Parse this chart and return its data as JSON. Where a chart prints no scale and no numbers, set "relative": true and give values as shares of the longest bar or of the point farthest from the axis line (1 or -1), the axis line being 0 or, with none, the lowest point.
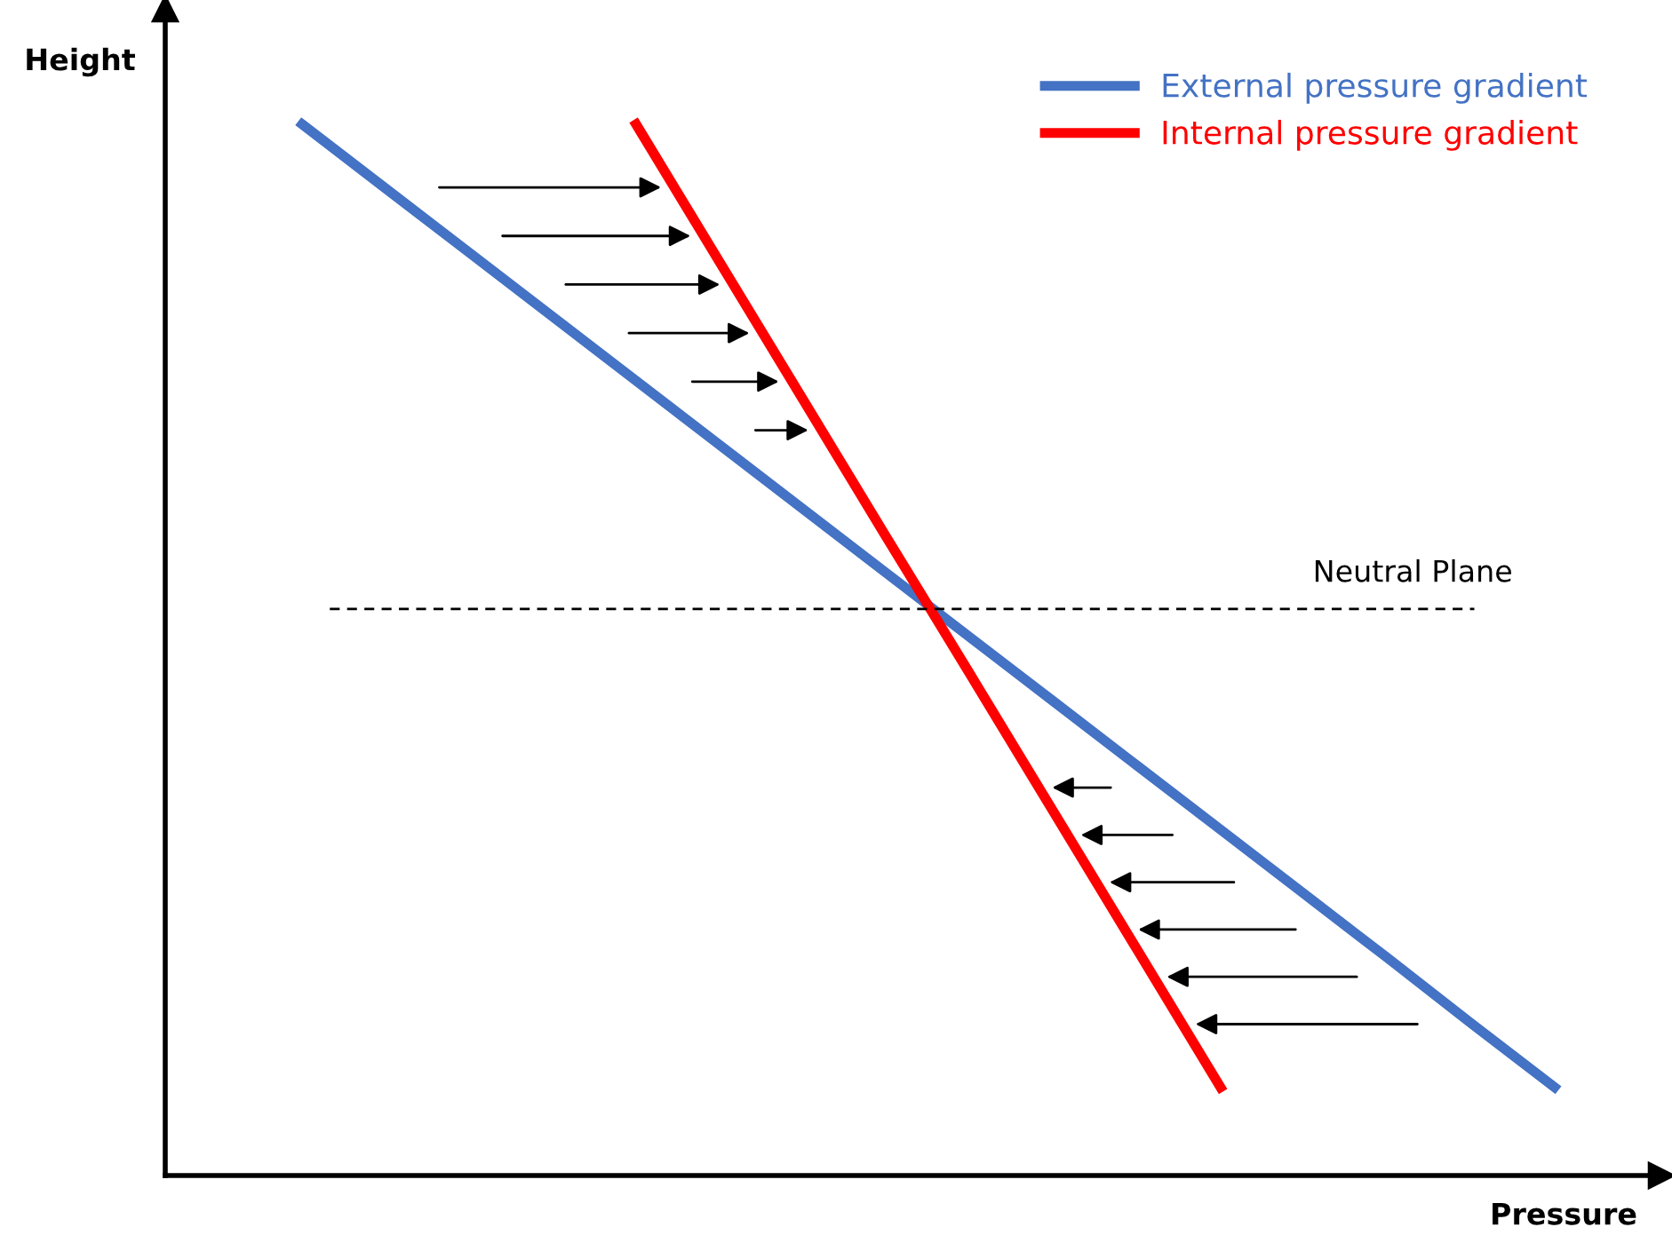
{
  "chart_data": {
    "type": "line",
    "relative": true,
    "xlabel": "Pressure",
    "ylabel": "Height",
    "legend": "top right",
    "categories": [
      null,
      null,
      null,
      null,
      null,
      null,
      null,
      null,
      null,
      null,
      null,
      null,
      null,
      null,
      null,
      null
    ],
    "series": [
      {
        "name": "External pressure gradient",
        "color": "#4472c4",
        "values": [
          1.0,
          0.939,
          0.878,
          0.817,
          0.756,
          0.695,
          0.634,
          0.573,
          0.512,
          0.451,
          0.39,
          0.329,
          0.268,
          0.207,
          0.145,
          0.084
        ]
      },
      {
        "name": "Internal pressure gradient",
        "color": "#ff0000",
        "values": [
          null,
          null,
          null,
          null,
          1.0,
          0.869,
          0.738,
          0.607,
          0.477,
          0.346,
          0.215,
          0.084,
          null,
          null,
          null,
          null
        ]
      }
    ],
    "ref_lines": [
      {
        "axis": "y",
        "value": 0.539,
        "label": "Neutral Plane",
        "color": "#000000",
        "line_style": "dashed"
      }
    ]
  }
}
